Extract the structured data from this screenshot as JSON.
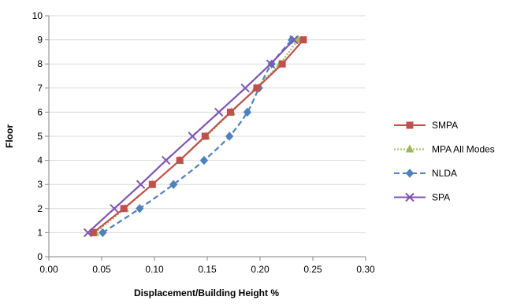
{
  "chart_data": {
    "type": "line",
    "title": "",
    "xlabel": "Displacement/Building Height %",
    "ylabel": "Floor",
    "xlim": [
      0,
      0.3
    ],
    "ylim": [
      0,
      10
    ],
    "x_ticks": [
      "0.00",
      "0.05",
      "0.10",
      "0.15",
      "0.20",
      "0.25",
      "0.30"
    ],
    "y_ticks": [
      "0",
      "1",
      "2",
      "3",
      "4",
      "5",
      "6",
      "7",
      "8",
      "9",
      "10"
    ],
    "grid": "horizontal",
    "legend_position": "right",
    "series": [
      {
        "name": "SMPA",
        "color": "#c0504d",
        "marker": "square",
        "line_style": "solid",
        "points": [
          [
            0.042,
            1
          ],
          [
            0.071,
            2
          ],
          [
            0.098,
            3
          ],
          [
            0.124,
            4
          ],
          [
            0.148,
            5
          ],
          [
            0.172,
            6
          ],
          [
            0.197,
            7
          ],
          [
            0.221,
            8
          ],
          [
            0.241,
            9
          ]
        ]
      },
      {
        "name": "MPA All Modes",
        "color": "#9bbb59",
        "marker": "triangle",
        "line_style": "dotted",
        "points": [
          [
            0.044,
            1
          ],
          [
            0.072,
            2
          ],
          [
            0.098,
            3
          ],
          [
            0.124,
            4
          ],
          [
            0.149,
            5
          ],
          [
            0.173,
            6
          ],
          [
            0.196,
            7
          ],
          [
            0.219,
            8
          ],
          [
            0.236,
            9
          ]
        ]
      },
      {
        "name": "NLDA",
        "color": "#4f81bd",
        "marker": "diamond",
        "line_style": "dashed",
        "points": [
          [
            0.051,
            1
          ],
          [
            0.086,
            2
          ],
          [
            0.118,
            3
          ],
          [
            0.147,
            4
          ],
          [
            0.171,
            5
          ],
          [
            0.188,
            6
          ],
          [
            0.199,
            7
          ],
          [
            0.211,
            8
          ],
          [
            0.23,
            9
          ]
        ]
      },
      {
        "name": "SPA",
        "color": "#7f55b3",
        "marker": "x",
        "line_style": "solid",
        "points": [
          [
            0.037,
            1
          ],
          [
            0.062,
            2
          ],
          [
            0.087,
            3
          ],
          [
            0.111,
            4
          ],
          [
            0.136,
            5
          ],
          [
            0.161,
            6
          ],
          [
            0.186,
            7
          ],
          [
            0.21,
            8
          ],
          [
            0.232,
            9
          ]
        ]
      }
    ]
  }
}
